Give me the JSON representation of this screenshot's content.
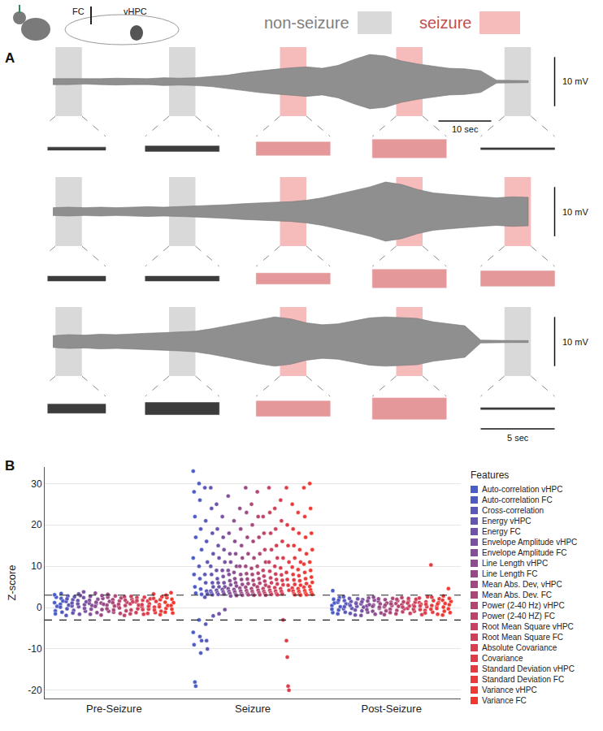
{
  "chart_data": [
    {
      "type": "line",
      "panel": "A",
      "tick_labels": false,
      "schematic_labels": [
        "FC",
        "vHPC"
      ],
      "window_types": [
        {
          "name": "non-seizure",
          "color": "#d9d9d9"
        },
        {
          "name": "seizure",
          "color": "#f6bcbc"
        }
      ],
      "xlim": [
        -1,
        100
      ],
      "window_length": 5,
      "x": [
        0,
        3,
        6,
        9,
        12,
        15,
        18,
        21,
        24,
        27,
        30,
        33,
        36,
        39,
        42,
        45,
        48,
        51,
        54,
        57,
        60,
        63,
        66,
        69,
        72,
        75,
        78,
        81,
        84,
        87,
        90
      ],
      "traces": [
        {
          "ylim": [
            -7,
            7
          ],
          "inset_ylim": [
            -4,
            4
          ],
          "envelope": [
            0.6,
            0.6,
            0.5,
            0.6,
            0.7,
            0.6,
            0.6,
            0.8,
            0.7,
            0.8,
            1.0,
            1.3,
            1.8,
            2.2,
            2.5,
            2.8,
            3.0,
            2.7,
            3.3,
            4.5,
            5.5,
            5.2,
            4.2,
            3.6,
            3.1,
            2.7,
            2.6,
            2.2,
            0.3,
            0.2,
            0.2
          ],
          "windows": [
            {
              "start": 0.5,
              "kind": "non-seizure",
              "inset_amplitude": 0.5
            },
            {
              "start": 22,
              "kind": "non-seizure",
              "inset_amplitude": 0.9
            },
            {
              "start": 43,
              "kind": "seizure",
              "inset_amplitude": 2.2
            },
            {
              "start": 65,
              "kind": "seizure",
              "inset_amplitude": 3
            },
            {
              "start": 85.5,
              "kind": "non-seizure",
              "inset_amplitude": 0.3
            }
          ]
        },
        {
          "ylim": [
            -7,
            7
          ],
          "inset_ylim": [
            -4,
            4
          ],
          "envelope": [
            0.8,
            0.9,
            0.8,
            0.9,
            0.8,
            0.9,
            1.0,
            0.9,
            1.0,
            1.1,
            1.2,
            1.4,
            1.6,
            1.8,
            1.9,
            2.0,
            2.3,
            2.8,
            3.5,
            4.2,
            5.0,
            6.0,
            5.5,
            4.5,
            3.8,
            3.5,
            3.2,
            3.0,
            2.8,
            3.0,
            2.9
          ],
          "windows": [
            {
              "start": 0.5,
              "kind": "non-seizure",
              "inset_amplitude": 0.8
            },
            {
              "start": 22,
              "kind": "non-seizure",
              "inset_amplitude": 0.8
            },
            {
              "start": 43,
              "kind": "seizure",
              "inset_amplitude": 1.8
            },
            {
              "start": 65,
              "kind": "seizure",
              "inset_amplitude": 3
            },
            {
              "start": 85.5,
              "kind": "seizure",
              "inset_amplitude": 2.5
            }
          ]
        },
        {
          "ylim": [
            -7,
            7
          ],
          "inset_ylim": [
            -4,
            4
          ],
          "envelope": [
            1.2,
            1.4,
            1.3,
            1.5,
            1.4,
            1.6,
            1.7,
            1.8,
            1.9,
            2.1,
            2.6,
            3.2,
            3.8,
            4.5,
            5.0,
            4.6,
            3.8,
            3.4,
            3.6,
            4.2,
            4.8,
            5.0,
            4.9,
            4.7,
            4.0,
            3.6,
            3.2,
            0.3,
            0.2,
            0.2,
            0.2
          ],
          "windows": [
            {
              "start": 0.5,
              "kind": "non-seizure",
              "inset_amplitude": 1.5
            },
            {
              "start": 22,
              "kind": "non-seizure",
              "inset_amplitude": 2
            },
            {
              "start": 43,
              "kind": "seizure",
              "inset_amplitude": 2.5
            },
            {
              "start": 65,
              "kind": "seizure",
              "inset_amplitude": 3.5
            },
            {
              "start": 85.5,
              "kind": "non-seizure",
              "inset_amplitude": 0.3
            }
          ]
        }
      ],
      "scale_bars": {
        "amplitude": {
          "value": 10,
          "label": "10 mV"
        },
        "time": {
          "value": 10,
          "label": "10 sec"
        },
        "inset_time": {
          "value": 5,
          "label": "5 sec"
        }
      }
    },
    {
      "type": "scatter",
      "panel": "B",
      "categories": [
        "Pre-Seizure",
        "Seizure",
        "Post-Seizure"
      ],
      "ylabel": "Z-score",
      "ylim": [
        -22,
        34
      ],
      "yticks": [
        -20,
        -10,
        0,
        10,
        20,
        30
      ],
      "grid": true,
      "thresholds": [
        -3,
        3
      ],
      "legend": "right",
      "legend_title": "Features",
      "series": [
        {
          "name": "Auto-correlation vHPC",
          "color": "#4a5cc8",
          "values": [
            [
              1.2,
              -0.8,
              2.5,
              0.3,
              3.1,
              -1.5
            ],
            [
              33,
              28,
              22,
              17,
              12,
              8,
              5,
              3.5,
              -6,
              -9,
              -18,
              -19
            ],
            [
              0.5,
              -1.2,
              2,
              1.1,
              -0.4,
              4.1
            ]
          ]
        },
        {
          "name": "Auto-correlation FC",
          "color": "#5059c0",
          "values": [
            [
              0.8,
              2.2,
              -1.1,
              1.6,
              0.1,
              3.4
            ],
            [
              30,
              26,
              19,
              14,
              10,
              7,
              4.5,
              3.2,
              -3,
              -7,
              -11,
              -8
            ],
            [
              1.3,
              -0.6,
              2.4,
              0.2,
              -1.5,
              1.8
            ]
          ]
        },
        {
          "name": "Cross-correlation",
          "color": "#5a57b8",
          "values": [
            [
              1.5,
              -0.3,
              2.8,
              0.6,
              -1.9,
              2.1
            ],
            [
              29,
              21,
              16,
              11,
              8,
              6,
              4,
              3.3,
              2.5,
              -4,
              -8,
              -10
            ],
            [
              -0.3,
              1.7,
              -1.1,
              0.9,
              2.6,
              0.2
            ]
          ]
        },
        {
          "name": "Energy vHPC",
          "color": "#6455b0",
          "values": [
            [
              0.4,
              1.9,
              -0.7,
              2.6,
              1.1,
              -1.3
            ],
            [
              29,
              24,
              18,
              13,
              10,
              8,
              6,
              5,
              4,
              3.5,
              3.1,
              -2
            ],
            [
              0.8,
              -1.4,
              1.5,
              -0.2,
              2.2,
              0.5
            ]
          ]
        },
        {
          "name": "Energy FC",
          "color": "#6e53a8",
          "values": [
            [
              1.7,
              0.2,
              -1.6,
              2.9,
              0.9,
              3.3
            ],
            [
              25,
              19,
              15,
              12,
              9,
              7,
              6,
              5,
              4.2,
              3.6,
              3.2,
              -1.5
            ],
            [
              -0.6,
              1.2,
              0.3,
              2.1,
              -1.8,
              1
            ]
          ]
        },
        {
          "name": "Envelope Amplitude vHPC",
          "color": "#7851a0",
          "values": [
            [
              2.4,
              0.7,
              -0.9,
              1.4,
              3.8,
              -0.2
            ],
            [
              22,
              17,
              14,
              11,
              9,
              7.5,
              6,
              5,
              4.4,
              3.8,
              3.3,
              -0.5
            ],
            [
              0.9,
              -0.8,
              1.9,
              0.1,
              -1.9,
              1.4
            ]
          ]
        },
        {
          "name": "Envelope Amplitude FC",
          "color": "#824f98",
          "values": [
            [
              1,
              2.7,
              -0.4,
              0.5,
              1.8,
              -1.6
            ],
            [
              27,
              18,
              13,
              11,
              9,
              8,
              6.5,
              5.5,
              4.6,
              3.9,
              3.4,
              2.8
            ],
            [
              0.4,
              -1.1,
              2.3,
              0.7,
              -0.5,
              1.6
            ]
          ]
        },
        {
          "name": "Line Length vHPC",
          "color": "#8c4d90",
          "values": [
            [
              3.5,
              0.9,
              -1.2,
              2,
              0.3,
              1.3
            ],
            [
              21,
              16,
              13,
              10,
              8.5,
              7,
              6,
              5.2,
              4.4,
              3.8,
              3.2,
              2.9
            ],
            [
              -0.9,
              0.6,
              1.8,
              -1.6,
              0.3,
              2.5
            ]
          ]
        },
        {
          "name": "Line Length FC",
          "color": "#964b88",
          "values": [
            [
              1.1,
              -0.5,
              2.2,
              0.8,
              -1.8,
              2.9
            ],
            [
              24,
              19,
              15,
              12,
              10,
              8,
              6.8,
              5.6,
              4.7,
              4,
              3.4,
              3
            ],
            [
              1.5,
              -0.2,
              0.9,
              -1.3,
              2.1,
              0.1
            ]
          ]
        },
        {
          "name": "Mean Abs. Dev, vHPC",
          "color": "#a04980",
          "values": [
            [
              0.6,
              2.5,
              -0.9,
              1.5,
              -0.3,
              3.2
            ],
            [
              29,
              23,
              17,
              13,
              10,
              8.2,
              6.9,
              5.8,
              4.9,
              4.1,
              3.5,
              3.1
            ],
            [
              0.2,
              1.9,
              -0.8,
              1.1,
              -1.7,
              0.6
            ]
          ]
        },
        {
          "name": "Mean Abs. Dev. FC",
          "color": "#aa4778",
          "values": [
            [
              1.9,
              -1.1,
              0.4,
              2.8,
              1.2,
              -0.6
            ],
            [
              25,
              20,
              16,
              12,
              9.5,
              8,
              6.6,
              5.5,
              4.6,
              3.9,
              3.3,
              3
            ],
            [
              -0.4,
              1.3,
              0.5,
              2.2,
              -1.2,
              0.9
            ]
          ]
        },
        {
          "name": "Power (2-40 Hz) vHPC",
          "color": "#b44570",
          "values": [
            [
              0.3,
              1.6,
              -1.4,
              2.3,
              0.8,
              -0.1
            ],
            [
              28,
              22,
              17,
              13,
              10,
              8.3,
              7,
              5.9,
              5,
              4.2,
              3.6,
              3.1
            ],
            [
              1,
              -0.7,
              1.7,
              0.3,
              -1.5,
              2
            ]
          ]
        },
        {
          "name": "Power (2-40 HZ) FC",
          "color": "#be4368",
          "values": [
            [
              2.6,
              0.5,
              -0.8,
              1.3,
              -1.9,
              1.8
            ],
            [
              22,
              18,
              14,
              11,
              9,
              7.6,
              6.4,
              5.4,
              4.6,
              3.9,
              3.4,
              3
            ],
            [
              0.7,
              -1,
              1.4,
              -0.3,
              2.4,
              0.1
            ]
          ]
        },
        {
          "name": "Root Mean Square vHPC",
          "color": "#c84160",
          "values": [
            [
              0.9,
              -0.6,
              2,
              1.4,
              -1.5,
              2.7
            ],
            [
              29,
              23,
              18,
              14,
              11,
              8.8,
              7.2,
              6,
              5,
              4.2,
              3.6,
              3.2
            ],
            [
              -0.2,
              1.6,
              0.4,
              -1.4,
              1.1,
              2.2
            ]
          ]
        },
        {
          "name": "Root Mean Square FC",
          "color": "#d03f58",
          "values": [
            [
              1.4,
              2.4,
              -0.3,
              0.6,
              -1.2,
              1.7
            ],
            [
              24,
              19,
              15,
              12,
              10,
              8.1,
              6.8,
              5.7,
              4.8,
              4,
              3.4,
              3.1
            ],
            [
              0.6,
              -0.9,
              1.3,
              2,
              -0.4,
              0.3
            ]
          ]
        },
        {
          "name": "Absolute Covariance",
          "color": "#d83d50",
          "values": [
            [
              0.2,
              1.8,
              -1.6,
              2.5,
              0.7,
              -0.5
            ],
            [
              26,
              21,
              16,
              12,
              9.6,
              7.9,
              6.6,
              5.5,
              4.6,
              3.9,
              3.3,
              -3
            ],
            [
              1.2,
              -0.5,
              0.8,
              -1.7,
              2.3,
              0.4
            ]
          ]
        },
        {
          "name": "Covariance",
          "color": "#de3c48",
          "values": [
            [
              1.6,
              -0.4,
              0.9,
              2.1,
              -1.4,
              0.3
            ],
            [
              29,
              20,
              15,
              11,
              8.5,
              6.8,
              5.4,
              4.2,
              -8,
              -12,
              -19,
              -20
            ],
            [
              -0.7,
              1.4,
              0.2,
              2.6,
              -1.3,
              0.8
            ]
          ]
        },
        {
          "name": "Standard Deviation vHPC",
          "color": "#e43b40",
          "values": [
            [
              2.2,
              0.1,
              -1.2,
              1.5,
              3.3,
              -0.6
            ],
            [
              25,
              19,
              15,
              12,
              9.8,
              8,
              6.7,
              5.6,
              4.7,
              4,
              3.4,
              3.1
            ],
            [
              10.3,
              0.5,
              -1.1,
              1.7,
              -0.4,
              2.5
            ]
          ]
        },
        {
          "name": "Standard Deviation FC",
          "color": "#ea3a3a",
          "values": [
            [
              0.7,
              1.9,
              -0.9,
              2.6,
              0.2,
              -1.7
            ],
            [
              23,
              18,
              14,
              11,
              9.2,
              7.7,
              6.5,
              5.4,
              4.6,
              3.9,
              3.3,
              3
            ],
            [
              0.3,
              -1.6,
              1.2,
              2.1,
              -0.2,
              0.9
            ]
          ]
        },
        {
          "name": "Variance vHPC",
          "color": "#ee3934",
          "values": [
            [
              1.3,
              -0.2,
              2.4,
              0.5,
              -1.1,
              3
            ],
            [
              29,
              22,
              17,
              13,
              10.5,
              8.5,
              7,
              5.8,
              4.9,
              4.1,
              3.5,
              3.1
            ],
            [
              1.8,
              0.1,
              -0.9,
              1,
              -1.8,
              2.8
            ]
          ]
        },
        {
          "name": "Variance FC",
          "color": "#f2382e",
          "values": [
            [
              0.5,
              2,
              -1.3,
              1.2,
              3.6,
              -0.4
            ],
            [
              30,
              24,
              18,
              14,
              11,
              9,
              7.4,
              6.1,
              5.1,
              4.3,
              3.6,
              3.2
            ],
            [
              4.6,
              0.7,
              -1.2,
              1.5,
              -0.3,
              2.2
            ]
          ]
        }
      ]
    }
  ]
}
